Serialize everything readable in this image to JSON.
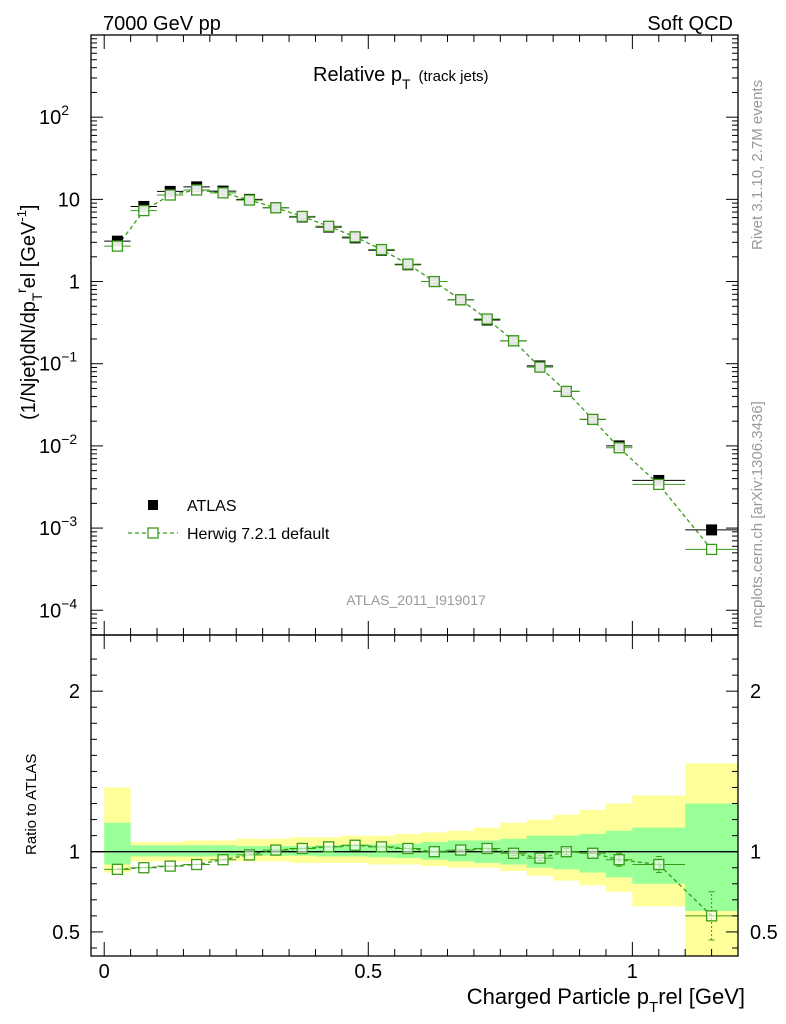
{
  "header": {
    "left": "7000 GeV pp",
    "right": "Soft QCD"
  },
  "plot": {
    "title_main": "Relative p",
    "title_sub": "T",
    "title_extra": "(track jets)",
    "ylabel": "(1/Njet)dN/dp",
    "ylabel_sub": "T",
    "ylabel_sup": "r",
    "ylabel_tail": "el [GeV",
    "ylabel_sup2": "-1",
    "ylabel_close": "]",
    "analysis": "ATLAS_2011_I919017",
    "side_top": "Rivet 3.1.10,  2.7M events",
    "side_bottom": "mcplots.cern.ch [arXiv:1306.3436]"
  },
  "legend": {
    "data": "ATLAS",
    "mc": "Herwig 7.2.1 default"
  },
  "ratio": {
    "ylabel": "Ratio to ATLAS"
  },
  "xaxis": {
    "label": "Charged Particle p",
    "label_sub": "T",
    "label_tail": "rel [GeV]"
  },
  "colors": {
    "data": "#000000",
    "mc": "#3a9a1a",
    "band_inner": "#99ff99",
    "band_outer": "#ffff99"
  },
  "chart_data": [
    {
      "type": "scatter",
      "title": "Relative pT (track jets)",
      "yscale": "log",
      "ylim": [
        5e-05,
        1000
      ],
      "xlim": [
        -0.025,
        1.2
      ],
      "yticks": [
        "10^-4",
        "10^-3",
        "10^-2",
        "10^-1",
        "1",
        "10",
        "10^2"
      ],
      "x": [
        0.025,
        0.075,
        0.125,
        0.175,
        0.225,
        0.275,
        0.325,
        0.375,
        0.425,
        0.475,
        0.525,
        0.575,
        0.625,
        0.675,
        0.725,
        0.775,
        0.825,
        0.875,
        0.925,
        0.975,
        1.05,
        1.15
      ],
      "xerr": [
        0.025,
        0.025,
        0.025,
        0.025,
        0.025,
        0.025,
        0.025,
        0.025,
        0.025,
        0.025,
        0.025,
        0.025,
        0.025,
        0.025,
        0.025,
        0.025,
        0.025,
        0.025,
        0.025,
        0.025,
        0.05,
        0.05
      ],
      "series": [
        {
          "name": "ATLAS",
          "values": [
            3.1,
            8.2,
            12.5,
            14.2,
            12.6,
            10.0,
            7.9,
            6.1,
            4.6,
            3.4,
            2.4,
            1.6,
            1.0,
            0.6,
            0.34,
            0.19,
            0.094,
            0.046,
            0.021,
            0.01,
            0.0038,
            0.00095
          ]
        },
        {
          "name": "Herwig 7.2.1 default",
          "values": [
            2.7,
            7.3,
            11.3,
            13.0,
            12.0,
            9.8,
            7.9,
            6.2,
            4.7,
            3.5,
            2.45,
            1.63,
            1.0,
            0.6,
            0.35,
            0.19,
            0.091,
            0.046,
            0.021,
            0.0095,
            0.0034,
            0.00055
          ]
        }
      ]
    },
    {
      "type": "scatter",
      "title": "Ratio to ATLAS",
      "ylim": [
        0.35,
        2.35
      ],
      "yticks": [
        0.5,
        1,
        2
      ],
      "xticks": [
        0,
        0.5,
        1
      ],
      "x": [
        0.025,
        0.075,
        0.125,
        0.175,
        0.225,
        0.275,
        0.325,
        0.375,
        0.425,
        0.475,
        0.525,
        0.575,
        0.625,
        0.675,
        0.725,
        0.775,
        0.825,
        0.875,
        0.925,
        0.975,
        1.05,
        1.15
      ],
      "bin_edges": [
        0.0,
        0.05,
        0.1,
        0.15,
        0.2,
        0.25,
        0.3,
        0.35,
        0.4,
        0.45,
        0.5,
        0.55,
        0.6,
        0.65,
        0.7,
        0.75,
        0.8,
        0.85,
        0.9,
        0.95,
        1.0,
        1.1,
        1.2
      ],
      "band_inner": [
        [
          0.92,
          1.18
        ],
        [
          0.97,
          1.04
        ],
        [
          0.97,
          1.04
        ],
        [
          0.97,
          1.04
        ],
        [
          0.97,
          1.04
        ],
        [
          0.975,
          1.035
        ],
        [
          0.975,
          1.035
        ],
        [
          0.975,
          1.035
        ],
        [
          0.97,
          1.04
        ],
        [
          0.97,
          1.045
        ],
        [
          0.965,
          1.045
        ],
        [
          0.96,
          1.05
        ],
        [
          0.95,
          1.06
        ],
        [
          0.94,
          1.07
        ],
        [
          0.93,
          1.07
        ],
        [
          0.92,
          1.08
        ],
        [
          0.9,
          1.1
        ],
        [
          0.89,
          1.1
        ],
        [
          0.87,
          1.11
        ],
        [
          0.84,
          1.13
        ],
        [
          0.8,
          1.15
        ],
        [
          0.63,
          1.3
        ]
      ],
      "band_outer": [
        [
          0.87,
          1.4
        ],
        [
          0.94,
          1.06
        ],
        [
          0.94,
          1.06
        ],
        [
          0.94,
          1.07
        ],
        [
          0.94,
          1.07
        ],
        [
          0.94,
          1.08
        ],
        [
          0.94,
          1.08
        ],
        [
          0.93,
          1.09
        ],
        [
          0.93,
          1.09
        ],
        [
          0.93,
          1.1
        ],
        [
          0.92,
          1.1
        ],
        [
          0.92,
          1.11
        ],
        [
          0.91,
          1.12
        ],
        [
          0.9,
          1.13
        ],
        [
          0.9,
          1.15
        ],
        [
          0.88,
          1.18
        ],
        [
          0.85,
          1.2
        ],
        [
          0.82,
          1.23
        ],
        [
          0.79,
          1.26
        ],
        [
          0.75,
          1.3
        ],
        [
          0.66,
          1.35
        ],
        [
          0.32,
          1.55
        ]
      ],
      "series": [
        {
          "name": "Herwig 7.2.1 default",
          "values": [
            0.89,
            0.9,
            0.91,
            0.92,
            0.95,
            0.98,
            1.01,
            1.02,
            1.03,
            1.04,
            1.03,
            1.02,
            1.0,
            1.01,
            1.02,
            0.99,
            0.96,
            1.0,
            0.99,
            0.95,
            0.92,
            0.6
          ],
          "err": [
            0.01,
            0.01,
            0.01,
            0.01,
            0.01,
            0.01,
            0.01,
            0.01,
            0.01,
            0.01,
            0.01,
            0.01,
            0.01,
            0.01,
            0.01,
            0.015,
            0.015,
            0.02,
            0.03,
            0.04,
            0.05,
            0.15
          ]
        }
      ]
    }
  ]
}
